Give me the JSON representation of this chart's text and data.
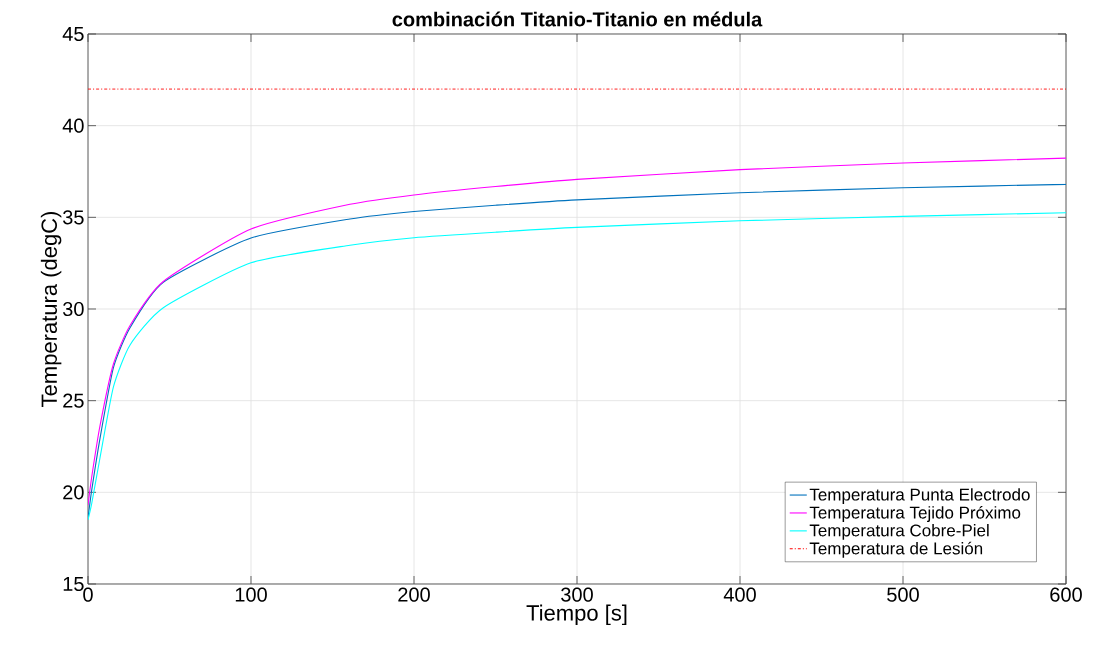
{
  "chart_data": {
    "type": "line",
    "title": "combinación Titanio-Titanio en médula",
    "xlabel": "Tiempo [s]",
    "ylabel": "Temperatura (degC)",
    "x": [
      0,
      2.3,
      7.4,
      15.6,
      25.8,
      46.2,
      100,
      160.7,
      200,
      250,
      300,
      400,
      500,
      600
    ],
    "series": [
      {
        "name": "Temperatura Punta Electrodo",
        "color": "#0072bd",
        "values": [
          18.6,
          20.13,
          22.96,
          26.8,
          28.98,
          31.46,
          33.87,
          34.91,
          35.32,
          35.66,
          35.95,
          36.34,
          36.61,
          36.8
        ]
      },
      {
        "name": "Temperatura Tejido Próximo",
        "color": "#ff00ff",
        "values": [
          19.3,
          20.85,
          23.65,
          27.0,
          29.1,
          31.5,
          34.36,
          35.71,
          36.22,
          36.68,
          37.07,
          37.6,
          37.96,
          38.23
        ]
      },
      {
        "name": "Temperatura Cobre-Piel",
        "color": "#00ffff",
        "values": [
          18.5,
          19.4,
          21.9,
          25.75,
          28.04,
          30.07,
          32.52,
          33.48,
          33.89,
          34.19,
          34.45,
          34.81,
          35.05,
          35.25
        ]
      }
    ],
    "ref_lines": [
      {
        "axis": "y",
        "value": 42,
        "label": "Temperatura de Lesión",
        "color": "#ff0000",
        "line_style": "dashdot"
      }
    ],
    "xlim": [
      0,
      600
    ],
    "xticks": [
      0,
      100,
      200,
      300,
      400,
      500,
      600
    ],
    "ylim": [
      15,
      45
    ],
    "yticks": [
      15,
      20,
      25,
      30,
      35,
      40,
      45
    ],
    "grid": true,
    "legend": "bottom right",
    "line_style": "solid",
    "marker": "none"
  }
}
